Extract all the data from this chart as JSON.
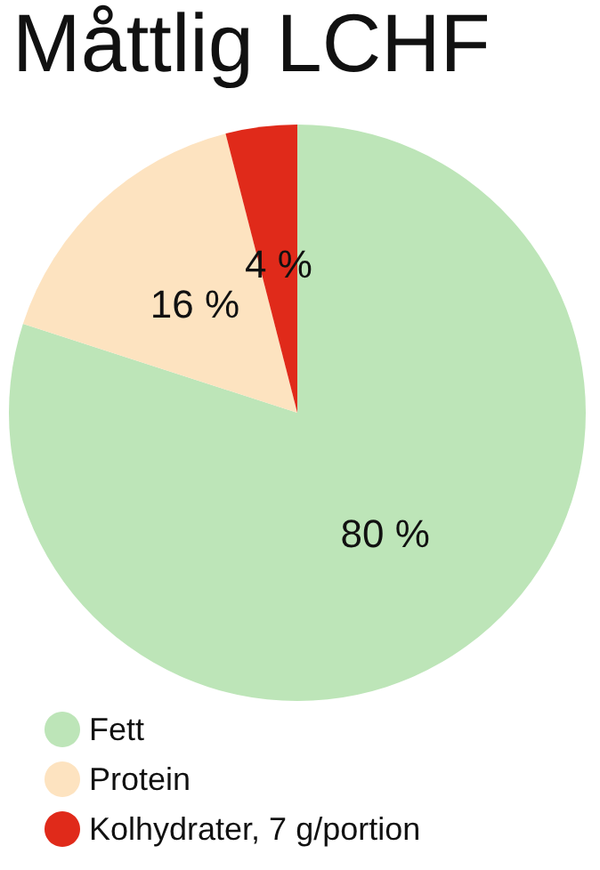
{
  "chart_data": {
    "type": "pie",
    "title": "Måttlig LCHF",
    "categories": [
      "Fett",
      "Protein",
      "Kolhydrater, 7 g/portion"
    ],
    "values": [
      80,
      16,
      4
    ],
    "colors": [
      "#bde5b8",
      "#fde3c0",
      "#e02a1a"
    ],
    "value_labels": [
      "80 %",
      "16 %",
      "4 %"
    ],
    "legend": "bottom left"
  }
}
